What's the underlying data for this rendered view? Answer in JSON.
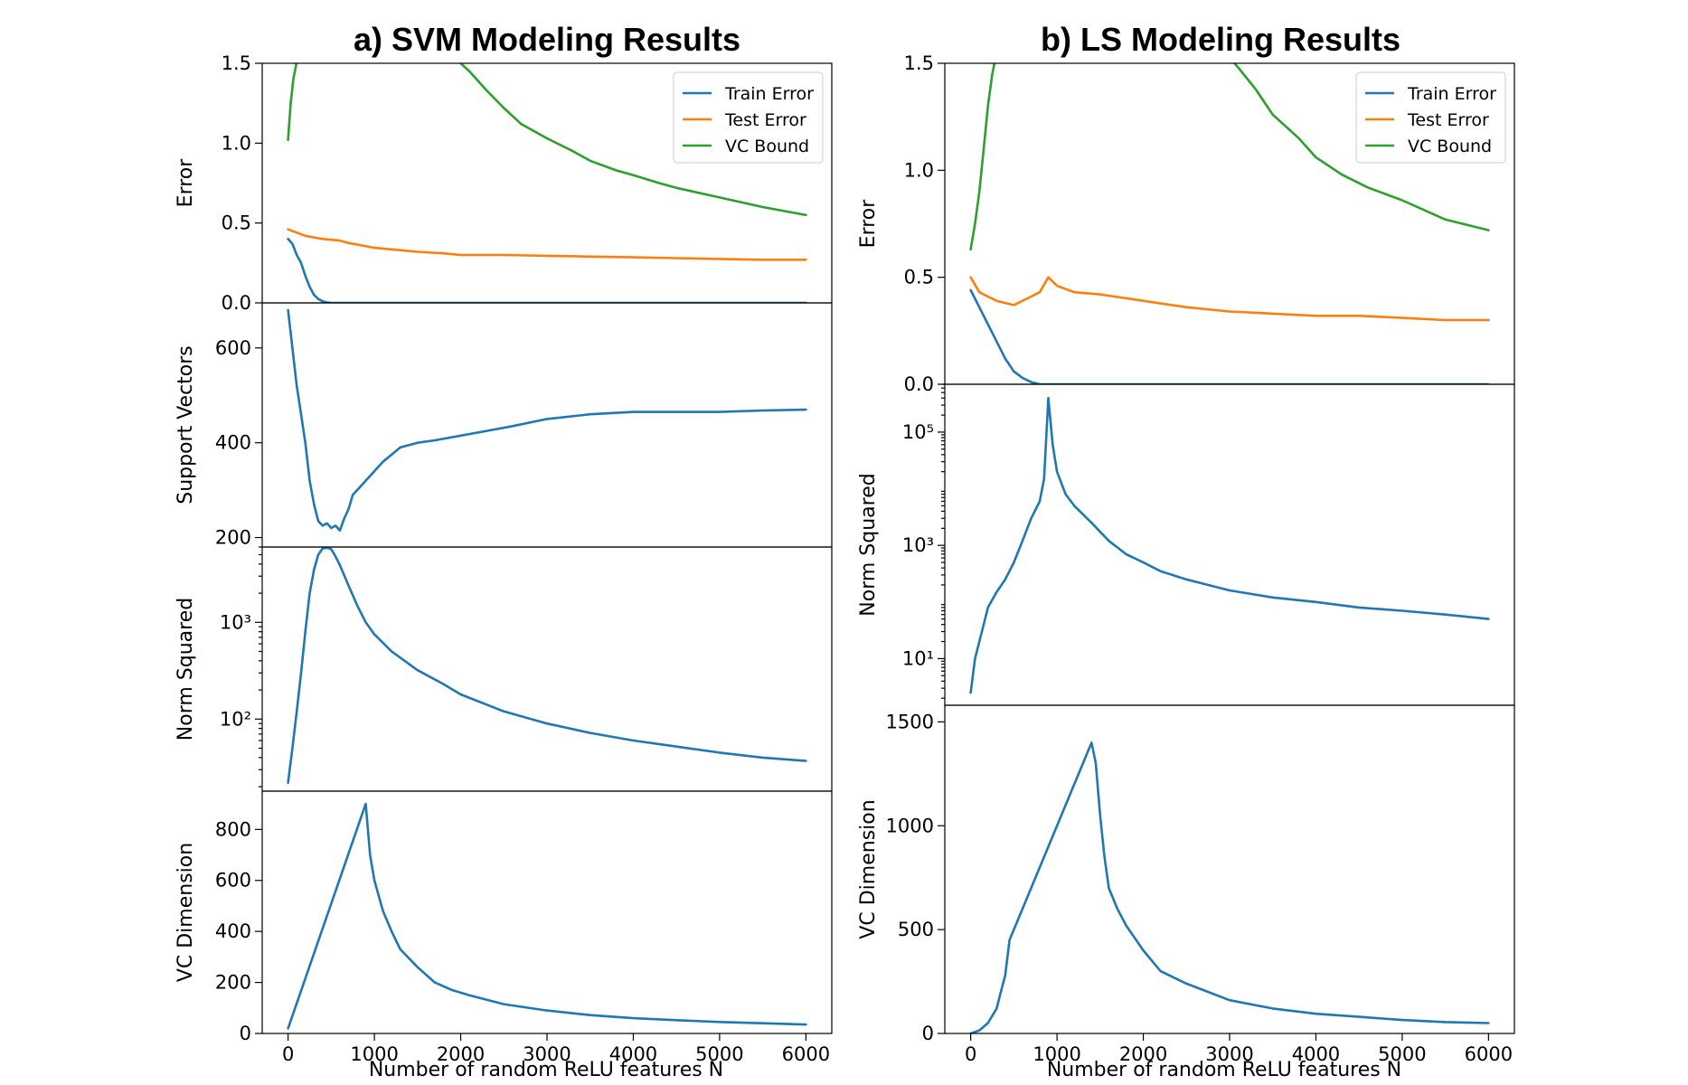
{
  "figure": {
    "titles": {
      "left": "a) SVM Modeling Results",
      "right": "b) LS Modeling Results"
    },
    "xlabel": "Number of random ReLU features N",
    "x_ticks": [
      "0",
      "1000",
      "2000",
      "3000",
      "4000",
      "5000",
      "6000"
    ],
    "legend": [
      {
        "label": "Train Error",
        "color": "#1f77b4"
      },
      {
        "label": "Test Error",
        "color": "#ff7f0e"
      },
      {
        "label": "VC Bound",
        "color": "#2ca02c"
      }
    ]
  },
  "chart_data": [
    {
      "id": "svm_error",
      "type": "line",
      "panel": "left",
      "ylabel": "Error",
      "xlim": [
        -300,
        6300
      ],
      "ylim": [
        0,
        1.5
      ],
      "yscale": "linear",
      "yticks": [
        {
          "v": 0,
          "label": "0.0"
        },
        {
          "v": 0.5,
          "label": "0.5"
        },
        {
          "v": 1.0,
          "label": "1.0"
        },
        {
          "v": 1.5,
          "label": "1.5"
        }
      ],
      "legend": "top-right",
      "series": [
        {
          "name": "Train Error",
          "color": "#1f77b4",
          "x": [
            0,
            50,
            100,
            150,
            200,
            250,
            300,
            350,
            400,
            450,
            500,
            600,
            6000
          ],
          "y": [
            0.4,
            0.37,
            0.3,
            0.25,
            0.17,
            0.1,
            0.05,
            0.025,
            0.01,
            0.003,
            0,
            0,
            0
          ]
        },
        {
          "name": "Test Error",
          "color": "#ff7f0e",
          "x": [
            0,
            100,
            200,
            300,
            400,
            500,
            600,
            700,
            800,
            1000,
            1200,
            1500,
            1800,
            2000,
            2500,
            3000,
            3500,
            4000,
            4500,
            5000,
            5500,
            6000
          ],
          "y": [
            0.46,
            0.44,
            0.42,
            0.41,
            0.4,
            0.395,
            0.39,
            0.375,
            0.365,
            0.345,
            0.335,
            0.32,
            0.31,
            0.3,
            0.3,
            0.295,
            0.29,
            0.285,
            0.28,
            0.275,
            0.27,
            0.27
          ]
        },
        {
          "name": "VC Bound",
          "color": "#2ca02c",
          "x": [
            0,
            30,
            60,
            90,
            110,
            1900,
            2100,
            2300,
            2500,
            2700,
            3000,
            3300,
            3500,
            3800,
            4000,
            4300,
            4500,
            5000,
            5500,
            6000
          ],
          "y": [
            1.02,
            1.25,
            1.4,
            1.48,
            1.55,
            1.55,
            1.45,
            1.33,
            1.22,
            1.12,
            1.03,
            0.95,
            0.89,
            0.83,
            0.8,
            0.75,
            0.72,
            0.66,
            0.6,
            0.55
          ]
        }
      ]
    },
    {
      "id": "svm_sv",
      "type": "line",
      "panel": "left",
      "ylabel": "Support Vectors",
      "xlim": [
        -300,
        6300
      ],
      "ylim": [
        180,
        695
      ],
      "yscale": "linear",
      "yticks": [
        {
          "v": 200,
          "label": "200"
        },
        {
          "v": 400,
          "label": "400"
        },
        {
          "v": 600,
          "label": "600"
        }
      ],
      "series": [
        {
          "name": "Support Vectors",
          "color": "#1f77b4",
          "x": [
            0,
            50,
            100,
            150,
            200,
            250,
            300,
            350,
            400,
            450,
            500,
            550,
            600,
            650,
            700,
            750,
            800,
            900,
            1000,
            1100,
            1200,
            1300,
            1400,
            1500,
            1700,
            2000,
            2300,
            2600,
            3000,
            3500,
            4000,
            4500,
            5000,
            5500,
            6000
          ],
          "y": [
            680,
            600,
            520,
            460,
            400,
            320,
            270,
            235,
            225,
            230,
            220,
            225,
            215,
            240,
            260,
            290,
            300,
            320,
            340,
            360,
            375,
            390,
            395,
            400,
            405,
            415,
            425,
            435,
            450,
            460,
            465,
            465,
            465,
            468,
            470
          ]
        }
      ]
    },
    {
      "id": "svm_norm",
      "type": "line",
      "panel": "left",
      "ylabel": "Norm Squared",
      "xlim": [
        -300,
        6300
      ],
      "ylim": [
        18,
        6000
      ],
      "yscale": "log",
      "yticks": [
        {
          "v": 100,
          "label": "10²"
        },
        {
          "v": 1000,
          "label": "10³"
        }
      ],
      "series": [
        {
          "name": "Norm Squared",
          "color": "#1f77b4",
          "x": [
            0,
            50,
            100,
            150,
            200,
            250,
            300,
            350,
            400,
            450,
            500,
            550,
            600,
            700,
            800,
            900,
            1000,
            1200,
            1500,
            1800,
            2000,
            2500,
            3000,
            3500,
            4000,
            4500,
            5000,
            5500,
            6000
          ],
          "y": [
            22,
            50,
            120,
            300,
            800,
            2000,
            3500,
            5000,
            5800,
            5900,
            5700,
            4800,
            3900,
            2400,
            1500,
            1000,
            750,
            500,
            320,
            230,
            180,
            120,
            90,
            72,
            60,
            52,
            45,
            40,
            37
          ]
        }
      ]
    },
    {
      "id": "svm_vcdim",
      "type": "line",
      "panel": "left",
      "ylabel": "VC Dimension",
      "xlim": [
        -300,
        6300
      ],
      "ylim": [
        0,
        950
      ],
      "yscale": "linear",
      "yticks": [
        {
          "v": 0,
          "label": "0"
        },
        {
          "v": 200,
          "label": "200"
        },
        {
          "v": 400,
          "label": "400"
        },
        {
          "v": 600,
          "label": "600"
        },
        {
          "v": 800,
          "label": "800"
        }
      ],
      "series": [
        {
          "name": "VC Dimension",
          "color": "#1f77b4",
          "x": [
            0,
            900,
            950,
            1000,
            1100,
            1200,
            1300,
            1500,
            1700,
            1900,
            2100,
            2500,
            3000,
            3500,
            4000,
            4500,
            5000,
            5500,
            6000
          ],
          "y": [
            20,
            900,
            700,
            600,
            480,
            400,
            330,
            260,
            200,
            170,
            150,
            115,
            90,
            72,
            60,
            52,
            45,
            40,
            35
          ]
        }
      ]
    },
    {
      "id": "ls_error",
      "type": "line",
      "panel": "right",
      "ylabel": "Error",
      "xlim": [
        -300,
        6300
      ],
      "ylim": [
        0,
        1.5
      ],
      "yscale": "linear",
      "yticks": [
        {
          "v": 0,
          "label": "0.0"
        },
        {
          "v": 0.5,
          "label": "0.5"
        },
        {
          "v": 1.0,
          "label": "1.0"
        },
        {
          "v": 1.5,
          "label": "1.5"
        }
      ],
      "legend": "top-right",
      "series": [
        {
          "name": "Train Error",
          "color": "#1f77b4",
          "x": [
            0,
            100,
            200,
            300,
            400,
            500,
            600,
            700,
            800,
            900,
            6000
          ],
          "y": [
            0.44,
            0.36,
            0.28,
            0.2,
            0.12,
            0.06,
            0.03,
            0.01,
            0,
            0,
            0
          ]
        },
        {
          "name": "Test Error",
          "color": "#ff7f0e",
          "x": [
            0,
            100,
            200,
            300,
            400,
            500,
            600,
            700,
            800,
            900,
            1000,
            1200,
            1500,
            2000,
            2500,
            3000,
            3500,
            4000,
            4500,
            5000,
            5500,
            6000
          ],
          "y": [
            0.5,
            0.43,
            0.41,
            0.39,
            0.38,
            0.37,
            0.39,
            0.41,
            0.43,
            0.5,
            0.46,
            0.43,
            0.42,
            0.39,
            0.36,
            0.34,
            0.33,
            0.32,
            0.32,
            0.31,
            0.3,
            0.3
          ]
        },
        {
          "name": "VC Bound",
          "color": "#2ca02c",
          "x": [
            0,
            50,
            100,
            150,
            200,
            250,
            300,
            2950,
            3100,
            3300,
            3500,
            3800,
            4000,
            4300,
            4600,
            5000,
            5500,
            6000
          ],
          "y": [
            0.63,
            0.75,
            0.9,
            1.1,
            1.3,
            1.45,
            1.55,
            1.55,
            1.48,
            1.38,
            1.26,
            1.15,
            1.06,
            0.98,
            0.92,
            0.86,
            0.77,
            0.72
          ]
        }
      ]
    },
    {
      "id": "ls_norm",
      "type": "line",
      "panel": "right",
      "ylabel": "Norm Squared",
      "xlim": [
        -300,
        6300
      ],
      "ylim": [
        1.5,
        700000
      ],
      "yscale": "log",
      "yticks": [
        {
          "v": 10,
          "label": "10¹"
        },
        {
          "v": 1000,
          "label": "10³"
        },
        {
          "v": 100000,
          "label": "10⁵"
        }
      ],
      "series": [
        {
          "name": "Norm Squared",
          "color": "#1f77b4",
          "x": [
            0,
            50,
            100,
            150,
            200,
            300,
            400,
            500,
            600,
            700,
            800,
            850,
            900,
            950,
            1000,
            1100,
            1200,
            1400,
            1600,
            1800,
            2000,
            2200,
            2500,
            3000,
            3500,
            4000,
            4500,
            5000,
            5500,
            6000
          ],
          "y": [
            2.5,
            10,
            20,
            40,
            80,
            150,
            250,
            500,
            1200,
            3000,
            6000,
            15000,
            400000,
            60000,
            20000,
            8000,
            5000,
            2500,
            1200,
            700,
            500,
            350,
            250,
            160,
            120,
            100,
            80,
            70,
            60,
            50
          ]
        }
      ]
    },
    {
      "id": "ls_vcdim",
      "type": "line",
      "panel": "right",
      "ylabel": "VC Dimension",
      "xlim": [
        -300,
        6300
      ],
      "ylim": [
        0,
        1580
      ],
      "yscale": "linear",
      "yticks": [
        {
          "v": 0,
          "label": "0"
        },
        {
          "v": 500,
          "label": "500"
        },
        {
          "v": 1000,
          "label": "1000"
        },
        {
          "v": 1500,
          "label": "1500"
        }
      ],
      "series": [
        {
          "name": "VC Dimension",
          "color": "#1f77b4",
          "x": [
            0,
            100,
            200,
            300,
            350,
            400,
            450,
            1400,
            1450,
            1500,
            1550,
            1600,
            1700,
            1800,
            2000,
            2200,
            2500,
            3000,
            3500,
            4000,
            4500,
            5000,
            5500,
            6000
          ],
          "y": [
            0,
            15,
            50,
            120,
            200,
            280,
            450,
            1400,
            1300,
            1050,
            850,
            700,
            600,
            520,
            400,
            300,
            240,
            160,
            120,
            95,
            80,
            65,
            55,
            50
          ]
        }
      ]
    }
  ]
}
